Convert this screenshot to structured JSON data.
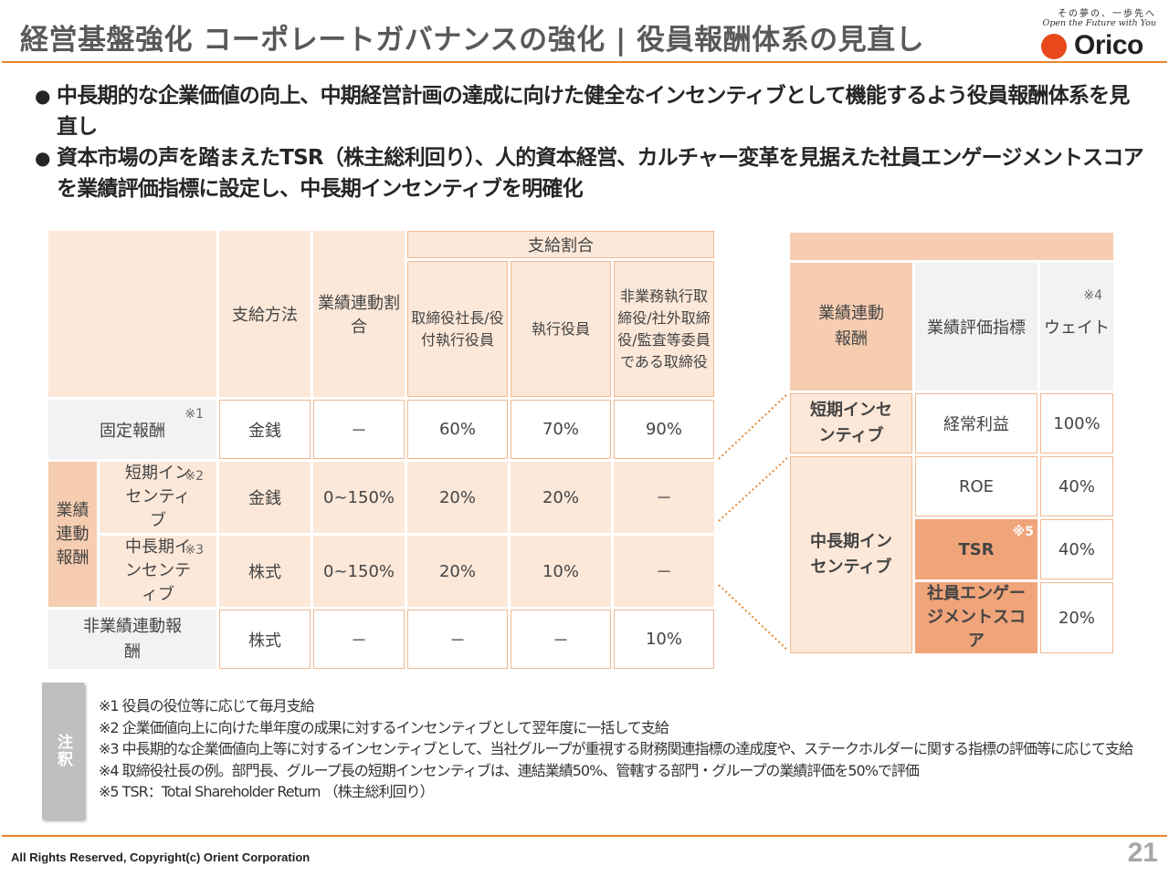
{
  "header": {
    "title": "経営基盤強化 コーポレートガバナンスの強化 | 役員報酬体系の見直し",
    "logo_tagline_jp": "その夢の、一歩先へ",
    "logo_tagline_en": "Open the Future with You",
    "logo_word": "Orico"
  },
  "bullets": [
    {
      "dot": "●",
      "text": "中長期的な企業価値の向上、中期経営計画の達成に向けた健全なインセンティブとして機能するよう役員報酬体系を見直し"
    },
    {
      "dot": "●",
      "text": "資本市場の声を踏まえたTSR（株主総利回り）、人的資本経営、カルチャー変革を見据えた社員エンゲージメントスコアを業績評価指標に設定し、中長期インセンティブを明確化"
    }
  ],
  "left_table": {
    "headers": {
      "method": "支給方法",
      "linked_ratio": "業績連動割合",
      "payout_ratio": "支給割合",
      "col_president": "取締役社長/役付執行役員",
      "col_officer": "執行役員",
      "col_nonexec": "非業務執行取締役/社外取締役/監査等委員である取締役"
    },
    "group_label": "業績連動報酬",
    "rows": [
      {
        "label": "固定報酬",
        "note": "※1",
        "method": "金銭",
        "ratio": "－",
        "president": "60%",
        "officer": "70%",
        "nonexec": "90%"
      },
      {
        "label": "短期インセンティブ",
        "note": "※2",
        "method": "金銭",
        "ratio": "0~150%",
        "president": "20%",
        "officer": "20%",
        "nonexec": "－"
      },
      {
        "label": "中長期インセンティブ",
        "note": "※3",
        "method": "株式",
        "ratio": "0~150%",
        "president": "20%",
        "officer": "10%",
        "nonexec": "－"
      },
      {
        "label": "非業績連動報酬",
        "note": "",
        "method": "株式",
        "ratio": "－",
        "president": "－",
        "officer": "－",
        "nonexec": "10%"
      }
    ]
  },
  "right_table": {
    "headers": {
      "category": "業績連動報酬",
      "indicator": "業績評価指標",
      "weight": "ウェイト",
      "weight_note": "※4"
    },
    "short_term": {
      "label": "短期インセンティブ",
      "items": [
        {
          "indicator": "経常利益",
          "weight": "100%"
        }
      ]
    },
    "long_term": {
      "label": "中長期インセンティブ",
      "items": [
        {
          "indicator": "ROE",
          "weight": "40%",
          "note": ""
        },
        {
          "indicator": "TSR",
          "weight": "40%",
          "note": "※5"
        },
        {
          "indicator": "社員エンゲージメントスコア",
          "weight": "20%",
          "note": ""
        }
      ]
    }
  },
  "notes": {
    "tab_label": "注釈",
    "items": [
      "※1 役員の役位等に応じて毎月支給",
      "※2 企業価値向上に向けた単年度の成果に対するインセンティブとして翌年度に一括して支給",
      "※3 中長期的な企業価値向上等に対するインセンティブとして、当社グループが重視する財務関連指標の達成度や、ステークホルダーに関する指標の評価等に応じて支給",
      "※4 取締役社長の例。部門長、グループ長の短期インセンティブは、連結業績50%、管轄する部門・グループの業績評価を50%で評価",
      "※5 TSR：Total Shareholder Return （株主総利回り）"
    ]
  },
  "footer": {
    "copyright": "All Rights Reserved, Copyright(c) Orient Corporation",
    "page_number": "21"
  },
  "colors": {
    "accent_orange": "#e8862c",
    "logo_red": "#e8481c",
    "peach": "#fce8d9",
    "tan": "#f6cdb0",
    "tsr_orange": "#f0a47a"
  }
}
